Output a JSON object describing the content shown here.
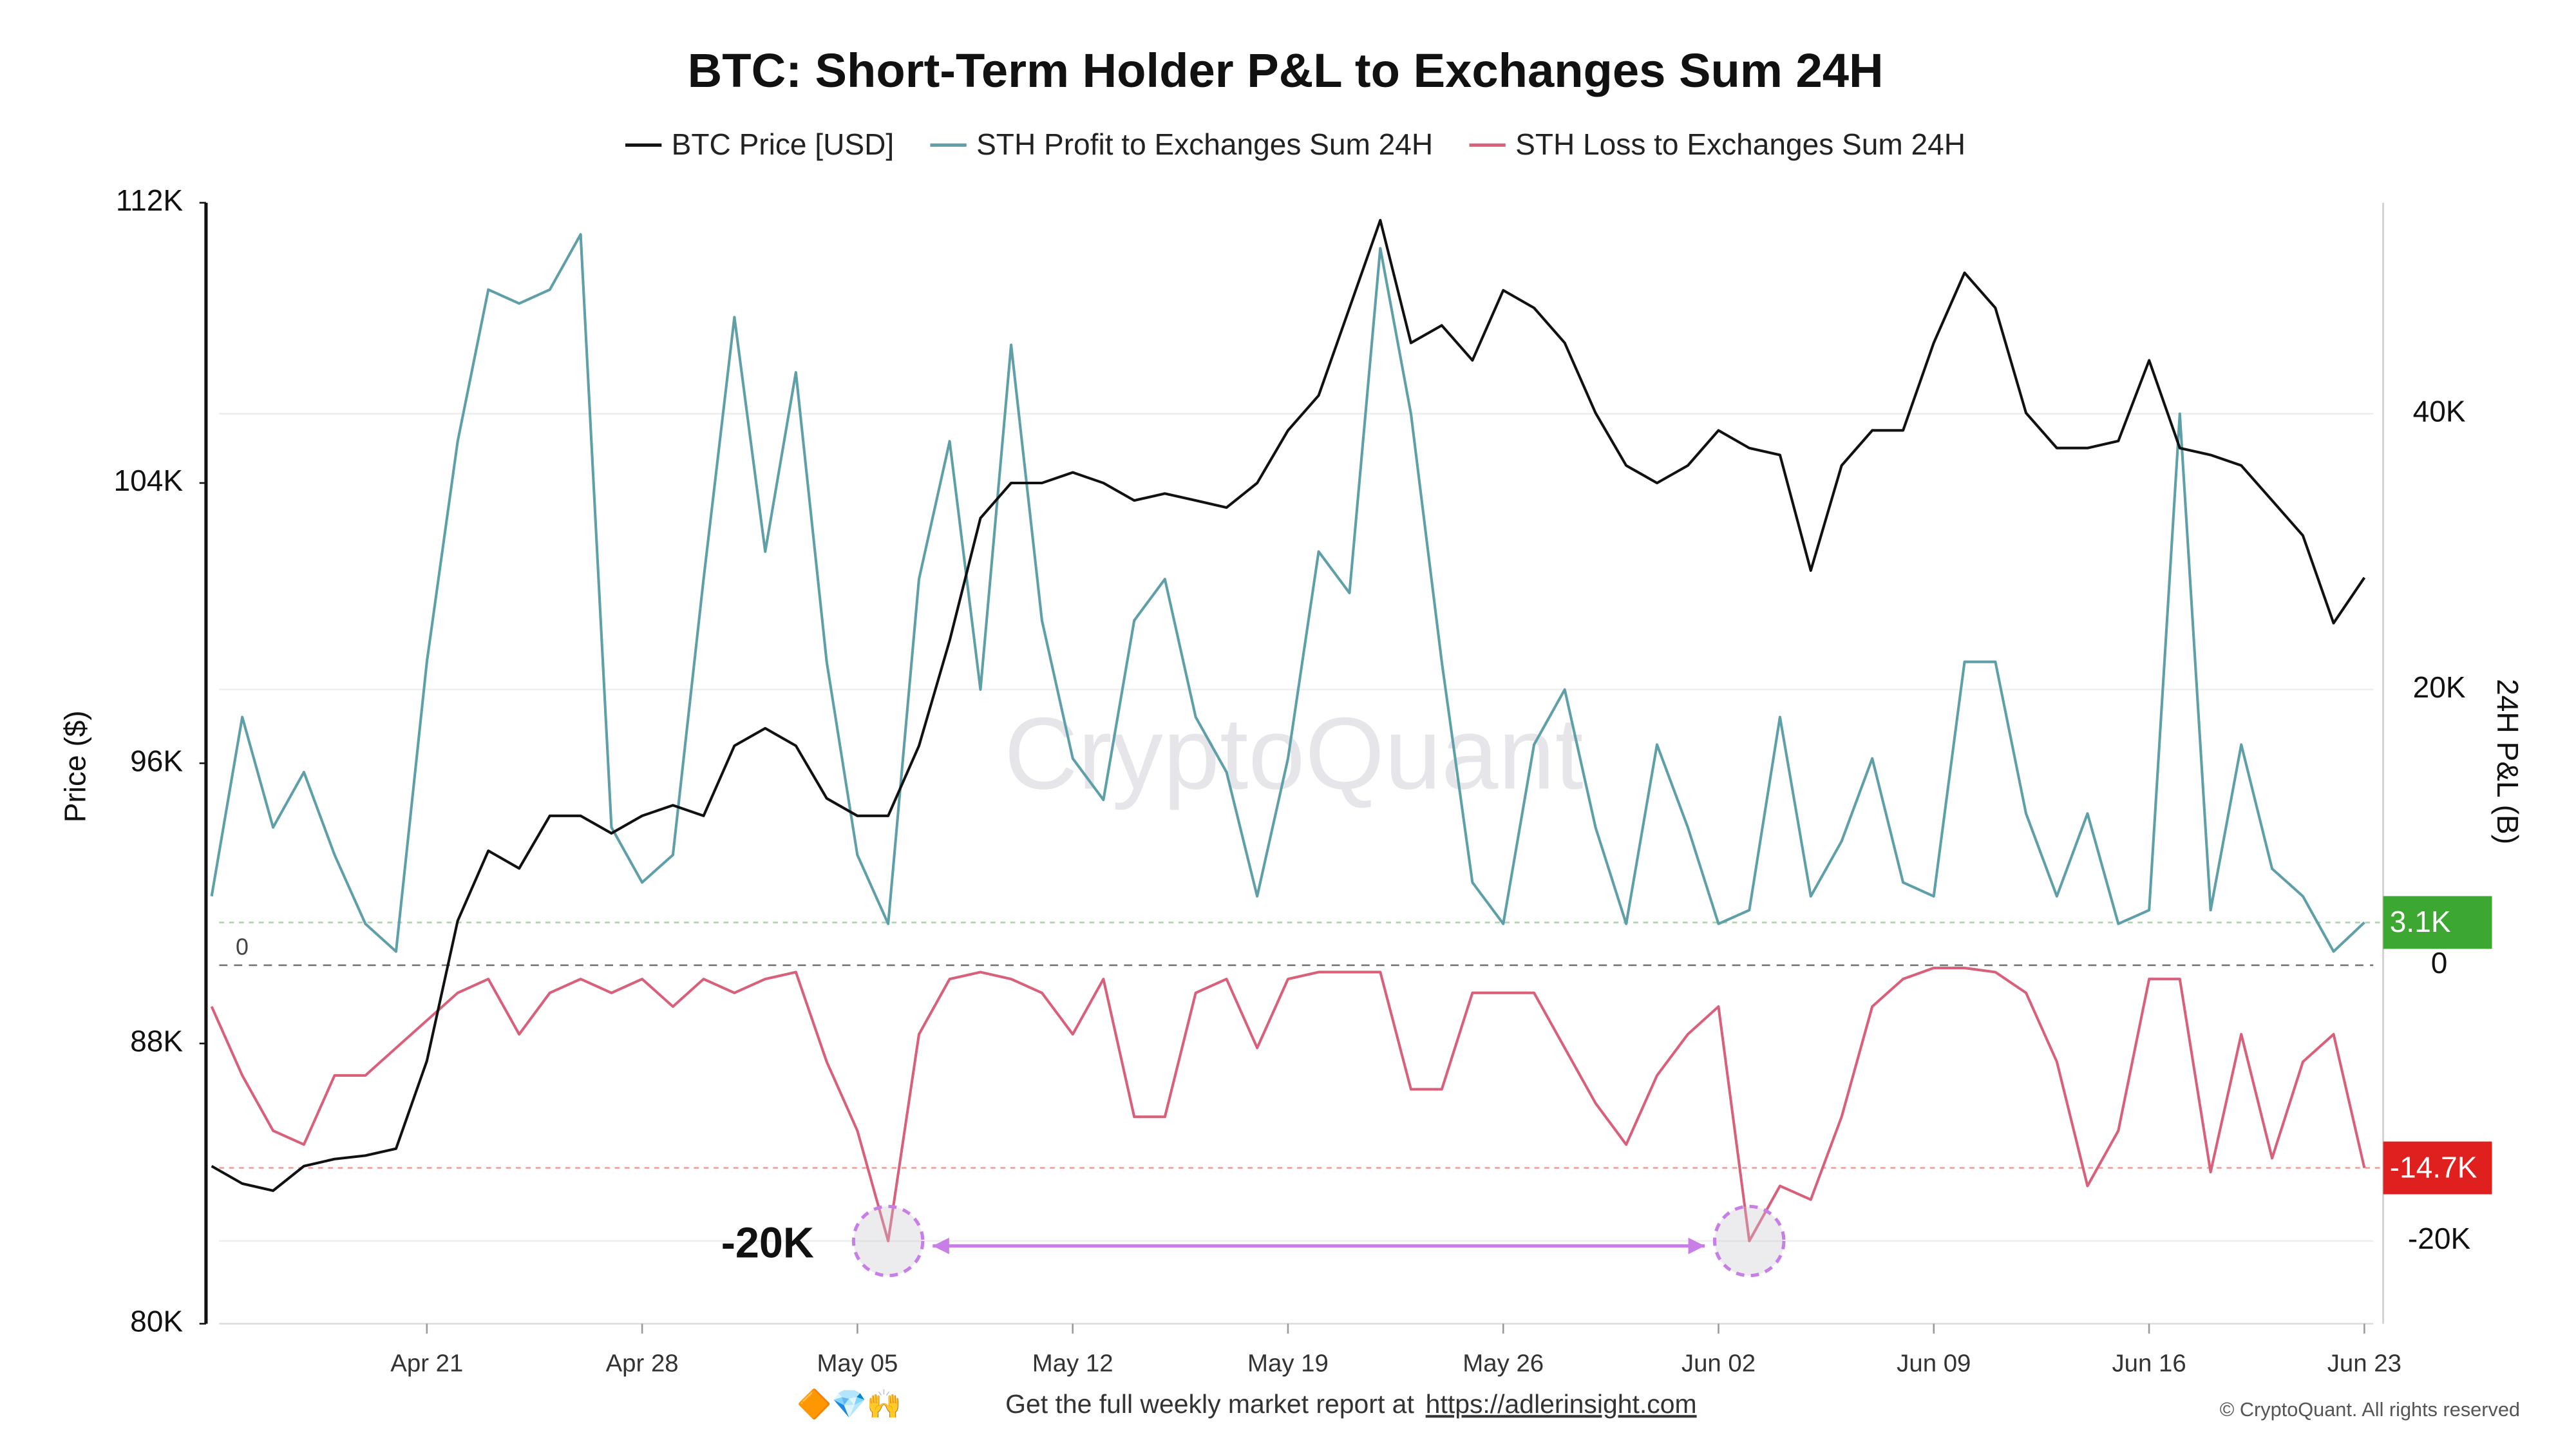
{
  "chart_data": {
    "type": "line",
    "title": "BTC: Short-Term Holder P&L to Exchanges Sum 24H",
    "ylabel": "Price ($)",
    "y2label": "24H P&L (B)",
    "watermark": "CryptoQuant",
    "x": [
      "Apr 14",
      "Apr 15",
      "Apr 16",
      "Apr 17",
      "Apr 18",
      "Apr 19",
      "Apr 20",
      "Apr 21",
      "Apr 22",
      "Apr 23",
      "Apr 24",
      "Apr 25",
      "Apr 26",
      "Apr 27",
      "Apr 28",
      "Apr 29",
      "Apr 30",
      "May 01",
      "May 02",
      "May 03",
      "May 04",
      "May 05",
      "May 06",
      "May 07",
      "May 08",
      "May 09",
      "May 10",
      "May 11",
      "May 12",
      "May 13",
      "May 14",
      "May 15",
      "May 16",
      "May 17",
      "May 18",
      "May 19",
      "May 20",
      "May 21",
      "May 22",
      "May 23",
      "May 24",
      "May 25",
      "May 26",
      "May 27",
      "May 28",
      "May 29",
      "May 30",
      "May 31",
      "Jun 01",
      "Jun 02",
      "Jun 03",
      "Jun 04",
      "Jun 05",
      "Jun 06",
      "Jun 07",
      "Jun 08",
      "Jun 09",
      "Jun 10",
      "Jun 11",
      "Jun 12",
      "Jun 13",
      "Jun 14",
      "Jun 15",
      "Jun 16",
      "Jun 17",
      "Jun 18",
      "Jun 19",
      "Jun 20",
      "Jun 21",
      "Jun 22",
      "Jun 23"
    ],
    "xticks": [
      "Apr 21",
      "Apr 28",
      "May 05",
      "May 12",
      "May 19",
      "May 26",
      "Jun 02",
      "Jun 09",
      "Jun 16",
      "Jun 23"
    ],
    "ylim": [
      80000,
      112000
    ],
    "yticks": [
      {
        "value": 80000,
        "label": "80K"
      },
      {
        "value": 88000,
        "label": "88K"
      },
      {
        "value": 96000,
        "label": "96K"
      },
      {
        "value": 104000,
        "label": "104K"
      },
      {
        "value": 112000,
        "label": "112K"
      }
    ],
    "y2lim": [
      -26000,
      55300
    ],
    "y2ticks": [
      {
        "value": -20000,
        "label": "-20K"
      },
      0,
      {
        "value": 20000,
        "label": "20K"
      },
      {
        "value": 40000,
        "label": "40K"
      }
    ],
    "zero_line": {
      "value": 0,
      "label": "0"
    },
    "series": [
      {
        "name": "BTC Price [USD]",
        "color": "#111111",
        "axis": "y",
        "values": [
          84500,
          84000,
          83800,
          84500,
          84700,
          84800,
          85000,
          87500,
          91500,
          93500,
          93000,
          94500,
          94500,
          94000,
          94500,
          94800,
          94500,
          96500,
          97000,
          96500,
          95000,
          94500,
          94500,
          96500,
          99500,
          103000,
          104000,
          104000,
          104300,
          104000,
          103500,
          103700,
          103500,
          103300,
          104000,
          105500,
          106500,
          109000,
          111500,
          108000,
          108500,
          107500,
          109500,
          109000,
          108000,
          106000,
          104500,
          104000,
          104500,
          105500,
          105000,
          104800,
          101500,
          104500,
          105500,
          105500,
          108000,
          110000,
          109000,
          106000,
          105000,
          105000,
          105200,
          107500,
          105000,
          104800,
          104500,
          103500,
          102500,
          100000,
          101300
        ]
      },
      {
        "name": "STH Profit to Exchanges Sum 24H",
        "color": "#5f9fa8",
        "axis": "y2",
        "values": [
          5000,
          18000,
          10000,
          14000,
          8000,
          3000,
          1000,
          22000,
          38000,
          49000,
          48000,
          49000,
          53000,
          10000,
          6000,
          8000,
          28000,
          47000,
          30000,
          43000,
          22000,
          8000,
          3000,
          28000,
          38000,
          20000,
          45000,
          25000,
          15000,
          12000,
          25000,
          28000,
          18000,
          14000,
          5000,
          15000,
          30000,
          27000,
          52000,
          40000,
          22000,
          6000,
          3000,
          16000,
          20000,
          10000,
          3000,
          16000,
          10000,
          3000,
          4000,
          18000,
          5000,
          9000,
          15000,
          6000,
          5000,
          22000,
          22000,
          11000,
          5000,
          11000,
          3000,
          4000,
          40000,
          4000,
          16000,
          7000,
          5000,
          1000,
          3100
        ]
      },
      {
        "name": "STH Loss to Exchanges Sum 24H",
        "color": "#d9607a",
        "axis": "y2",
        "values": [
          -3000,
          -8000,
          -12000,
          -13000,
          -8000,
          -8000,
          -6000,
          -4000,
          -2000,
          -1000,
          -5000,
          -2000,
          -1000,
          -2000,
          -1000,
          -3000,
          -1000,
          -2000,
          -1000,
          -500,
          -7000,
          -12000,
          -20000,
          -5000,
          -1000,
          -500,
          -1000,
          -2000,
          -5000,
          -1000,
          -11000,
          -11000,
          -2000,
          -1000,
          -6000,
          -1000,
          -500,
          -500,
          -500,
          -9000,
          -9000,
          -2000,
          -2000,
          -2000,
          -6000,
          -10000,
          -13000,
          -8000,
          -5000,
          -3000,
          -20000,
          -16000,
          -17000,
          -11000,
          -3000,
          -1000,
          -200,
          -200,
          -500,
          -2000,
          -7000,
          -16000,
          -12000,
          -1000,
          -1000,
          -15000,
          -5000,
          -14000,
          -7000,
          -5000,
          -14700
        ]
      }
    ],
    "reference_lines": [
      {
        "value": 3100,
        "label": "3.1K",
        "color": "#3ca832"
      },
      {
        "value": -14700,
        "label": "-14.7K",
        "color": "#e0201e"
      }
    ],
    "annotation": {
      "text": "-20K",
      "value": -20000,
      "from": "May 06",
      "to": "Jun 03",
      "color": "#c77ee6"
    }
  },
  "footer": {
    "emoji": "🔶💎🙌",
    "text": "Get the full weekly market report at",
    "link": "https://adlerinsight.com",
    "copyright": "© CryptoQuant. All rights reserved"
  }
}
